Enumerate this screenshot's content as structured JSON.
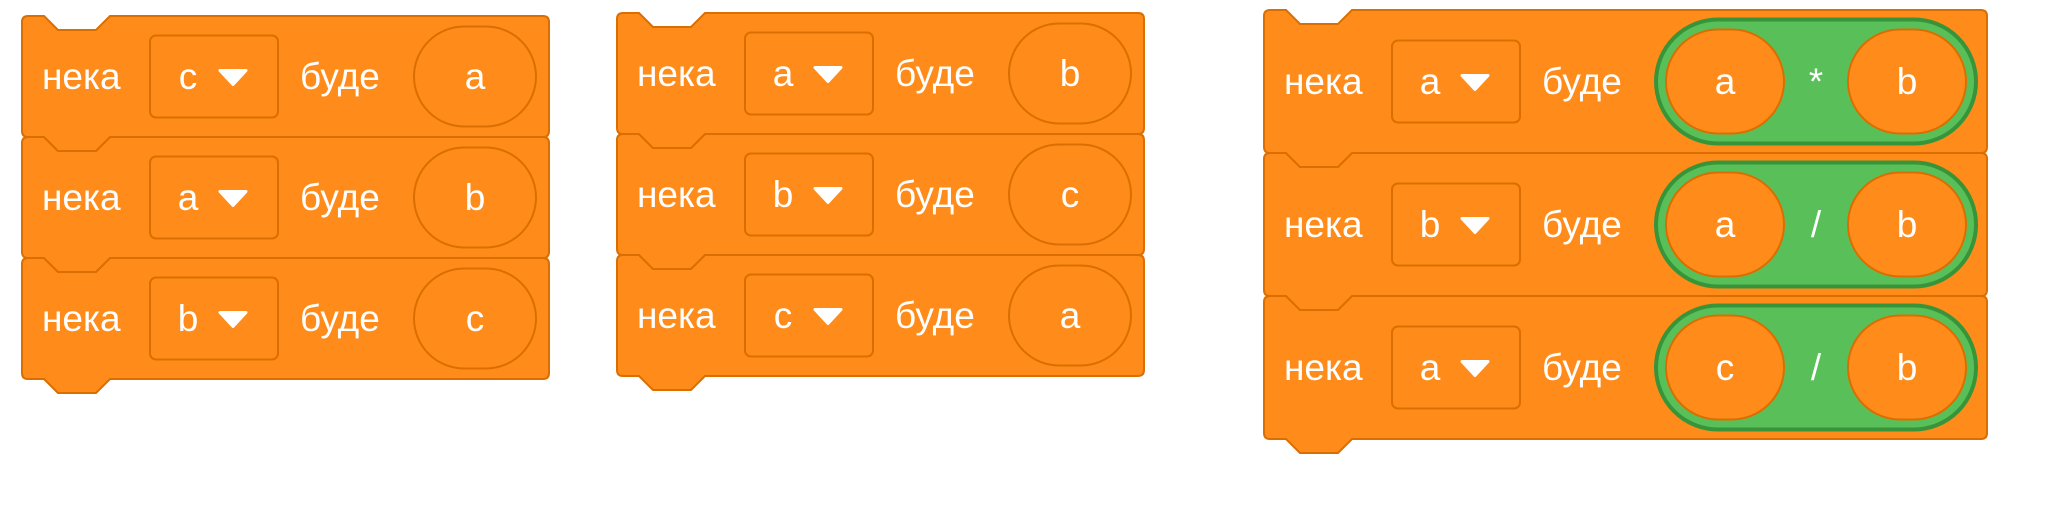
{
  "colors": {
    "block_fill": "#FF8C1A",
    "block_stroke": "#DB6E00",
    "reporter_fill": "#59C059",
    "reporter_stroke": "#389438",
    "text": "#FFFFFF"
  },
  "icons": {
    "dropdown": "caret-down-icon"
  },
  "stacks": [
    {
      "blocks": [
        {
          "label": "нека",
          "variable": "c",
          "to": "буде",
          "value": "a"
        },
        {
          "label": "нека",
          "variable": "a",
          "to": "буде",
          "value": "b"
        },
        {
          "label": "нека",
          "variable": "b",
          "to": "буде",
          "value": "c"
        }
      ]
    },
    {
      "blocks": [
        {
          "label": "нека",
          "variable": "a",
          "to": "буде",
          "value": "b"
        },
        {
          "label": "нека",
          "variable": "b",
          "to": "буде",
          "value": "c"
        },
        {
          "label": "нека",
          "variable": "c",
          "to": "буде",
          "value": "a"
        }
      ]
    },
    {
      "blocks": [
        {
          "label": "нека",
          "variable": "a",
          "to": "буде",
          "operator": {
            "left": "a",
            "symbol": "*",
            "right": "b"
          }
        },
        {
          "label": "нека",
          "variable": "b",
          "to": "буде",
          "operator": {
            "left": "a",
            "symbol": "/",
            "right": "b"
          }
        },
        {
          "label": "нека",
          "variable": "a",
          "to": "буде",
          "operator": {
            "left": "c",
            "symbol": "/",
            "right": "b"
          }
        }
      ]
    }
  ]
}
